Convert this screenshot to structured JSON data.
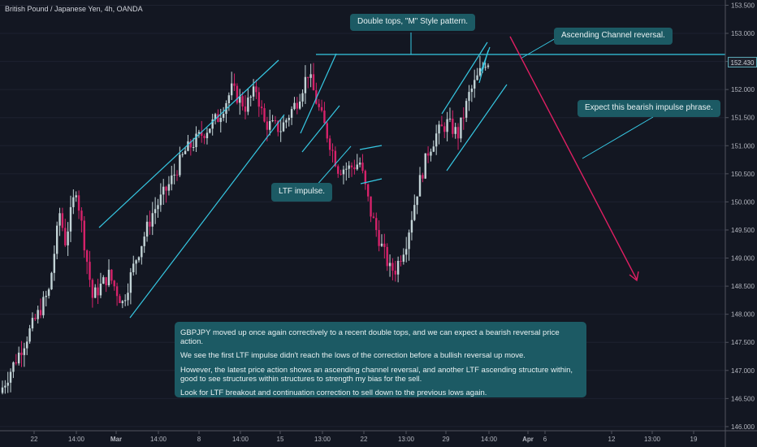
{
  "symbol_title": "British Pound / Japanese Yen, 4h, OANDA",
  "current_price_label": "152.430",
  "notes": {
    "double_tops": "Double tops, \"M\" Style pattern.",
    "ascending_channel": "Ascending Channel reversal.",
    "bearish_impulse": "Expect this bearish impulse phrase.",
    "ltf_impulse": "LTF impulse."
  },
  "analysis": {
    "p1": "GBPJPY moved up once again correctively to a recent double tops, and we can expect a bearish reversal price action.",
    "p2": "We see the first LTF impulse didn't reach the lows of the correction before a bullish reversal up move.",
    "p3": "However, the latest price action shows an ascending channel reversal, and another LTF ascending structure within, good to see structures within structures to strength my bias for the sell.",
    "p4": "Look for LTF breakout and continuation correction to sell down to the previous lows again."
  },
  "colors": {
    "background": "#131722",
    "bull_candle": "#c2d3d6",
    "bear_candle": "#d6226a",
    "trendline": "#36c8e3",
    "forecast_arrow": "#e01f63",
    "note_bg": "#1c5a64",
    "axis_text": "#b2b5be"
  },
  "chart_data": {
    "type": "candlestick",
    "y_axis": {
      "ticks": [
        146.0,
        146.5,
        147.0,
        147.5,
        148.0,
        148.5,
        149.0,
        149.5,
        150.0,
        150.5,
        151.0,
        151.5,
        152.0,
        152.5,
        153.0,
        153.5
      ],
      "tick_labels": [
        "146.000",
        "146.500",
        "147.000",
        "147.500",
        "148.000",
        "148.500",
        "149.000",
        "149.500",
        "150.000",
        "150.500",
        "151.000",
        "151.500",
        "152.000",
        "152.500",
        "153.000",
        "153.500"
      ],
      "range": [
        145.97,
        153.55
      ]
    },
    "x_axis": {
      "tick_labels": [
        "22",
        "14:00",
        "Mar",
        "14:00",
        "8",
        "14:00",
        "15",
        "13:00",
        "22",
        "13:00",
        "29",
        "14:00",
        "Apr",
        "6",
        "12",
        "13:00",
        "19"
      ]
    },
    "price_path_keypoints": [
      {
        "i": 0,
        "price": 146.6
      },
      {
        "i": 10,
        "price": 147.6
      },
      {
        "i": 18,
        "price": 148.4
      },
      {
        "i": 22,
        "price": 149.8
      },
      {
        "i": 24,
        "price": 149.3
      },
      {
        "i": 28,
        "price": 150.25
      },
      {
        "i": 34,
        "price": 148.3
      },
      {
        "i": 40,
        "price": 148.7
      },
      {
        "i": 45,
        "price": 148.2
      },
      {
        "i": 50,
        "price": 149.0
      },
      {
        "i": 56,
        "price": 149.8
      },
      {
        "i": 62,
        "price": 150.3
      },
      {
        "i": 68,
        "price": 150.9
      },
      {
        "i": 74,
        "price": 151.2
      },
      {
        "i": 80,
        "price": 151.5
      },
      {
        "i": 85,
        "price": 152.0
      },
      {
        "i": 90,
        "price": 151.7
      },
      {
        "i": 94,
        "price": 152.0
      },
      {
        "i": 97,
        "price": 151.4
      },
      {
        "i": 103,
        "price": 151.3
      },
      {
        "i": 109,
        "price": 151.8
      },
      {
        "i": 113,
        "price": 152.3
      },
      {
        "i": 116,
        "price": 151.8
      },
      {
        "i": 120,
        "price": 151.2
      },
      {
        "i": 124,
        "price": 150.6
      },
      {
        "i": 128,
        "price": 150.6
      },
      {
        "i": 132,
        "price": 150.7
      },
      {
        "i": 136,
        "price": 149.8
      },
      {
        "i": 140,
        "price": 149.2
      },
      {
        "i": 143,
        "price": 148.8
      },
      {
        "i": 145,
        "price": 148.8
      },
      {
        "i": 149,
        "price": 149.3
      },
      {
        "i": 153,
        "price": 150.2
      },
      {
        "i": 157,
        "price": 150.9
      },
      {
        "i": 160,
        "price": 151.2
      },
      {
        "i": 164,
        "price": 151.4
      },
      {
        "i": 168,
        "price": 151.2
      },
      {
        "i": 172,
        "price": 151.9
      },
      {
        "i": 176,
        "price": 152.3
      },
      {
        "i": 178,
        "price": 152.5
      }
    ],
    "double_top_level": 152.6,
    "forecast": {
      "from": 152.9,
      "to": 148.6
    }
  }
}
